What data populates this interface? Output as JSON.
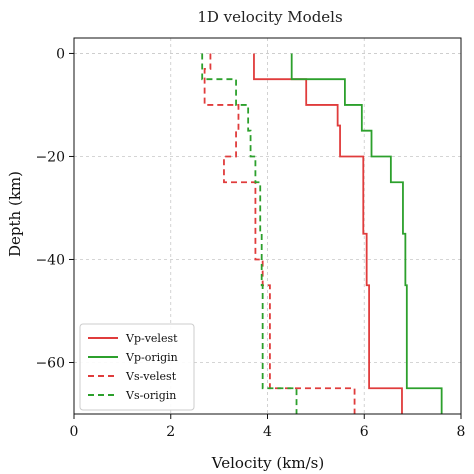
{
  "chart_data": {
    "type": "line",
    "title": "1D velocity Models",
    "xlabel": "Velocity (km/s)",
    "ylabel": "Depth (km)",
    "xlim": [
      0,
      8
    ],
    "ylim": [
      -70,
      3
    ],
    "xticks": [
      0,
      2,
      4,
      6,
      8
    ],
    "yticks": [
      0,
      -20,
      -40,
      -60
    ],
    "grid": true,
    "legend_position": "lower-left",
    "series": [
      {
        "name": "Vp-velest",
        "color": "#e03c3c",
        "dash": "solid",
        "points": [
          [
            3.72,
            0
          ],
          [
            3.72,
            -5
          ],
          [
            4.8,
            -5
          ],
          [
            4.8,
            -10
          ],
          [
            5.45,
            -10
          ],
          [
            5.45,
            -14
          ],
          [
            5.5,
            -14
          ],
          [
            5.5,
            -20
          ],
          [
            5.98,
            -20
          ],
          [
            5.98,
            -35
          ],
          [
            6.05,
            -35
          ],
          [
            6.05,
            -45
          ],
          [
            6.1,
            -45
          ],
          [
            6.1,
            -65
          ],
          [
            6.78,
            -65
          ],
          [
            6.78,
            -70
          ]
        ]
      },
      {
        "name": "Vp-origin",
        "color": "#2ca02c",
        "dash": "solid",
        "points": [
          [
            4.5,
            0
          ],
          [
            4.5,
            -5
          ],
          [
            5.6,
            -5
          ],
          [
            5.6,
            -10
          ],
          [
            5.95,
            -10
          ],
          [
            5.95,
            -15
          ],
          [
            6.15,
            -15
          ],
          [
            6.15,
            -20
          ],
          [
            6.55,
            -20
          ],
          [
            6.55,
            -25
          ],
          [
            6.8,
            -25
          ],
          [
            6.8,
            -35
          ],
          [
            6.85,
            -35
          ],
          [
            6.85,
            -45
          ],
          [
            6.88,
            -45
          ],
          [
            6.88,
            -65
          ],
          [
            7.6,
            -65
          ],
          [
            7.6,
            -70
          ]
        ]
      },
      {
        "name": "Vs-velest",
        "color": "#e03c3c",
        "dash": "dashed",
        "points": [
          [
            2.82,
            0
          ],
          [
            2.82,
            -3
          ],
          [
            2.7,
            -3
          ],
          [
            2.7,
            -10
          ],
          [
            3.4,
            -10
          ],
          [
            3.4,
            -15
          ],
          [
            3.35,
            -15
          ],
          [
            3.35,
            -20
          ],
          [
            3.1,
            -20
          ],
          [
            3.1,
            -25
          ],
          [
            3.75,
            -25
          ],
          [
            3.75,
            -40
          ],
          [
            3.9,
            -40
          ],
          [
            3.9,
            -45
          ],
          [
            4.05,
            -45
          ],
          [
            4.05,
            -65
          ],
          [
            5.8,
            -65
          ],
          [
            5.8,
            -70
          ]
        ]
      },
      {
        "name": "Vs-origin",
        "color": "#2ca02c",
        "dash": "dashed",
        "points": [
          [
            2.65,
            0
          ],
          [
            2.65,
            -5
          ],
          [
            3.35,
            -5
          ],
          [
            3.35,
            -10
          ],
          [
            3.6,
            -10
          ],
          [
            3.6,
            -15
          ],
          [
            3.65,
            -15
          ],
          [
            3.65,
            -20
          ],
          [
            3.75,
            -20
          ],
          [
            3.75,
            -25
          ],
          [
            3.85,
            -25
          ],
          [
            3.85,
            -35
          ],
          [
            3.88,
            -35
          ],
          [
            3.88,
            -45
          ],
          [
            3.9,
            -45
          ],
          [
            3.9,
            -65
          ],
          [
            4.6,
            -65
          ],
          [
            4.6,
            -70
          ]
        ]
      }
    ]
  }
}
